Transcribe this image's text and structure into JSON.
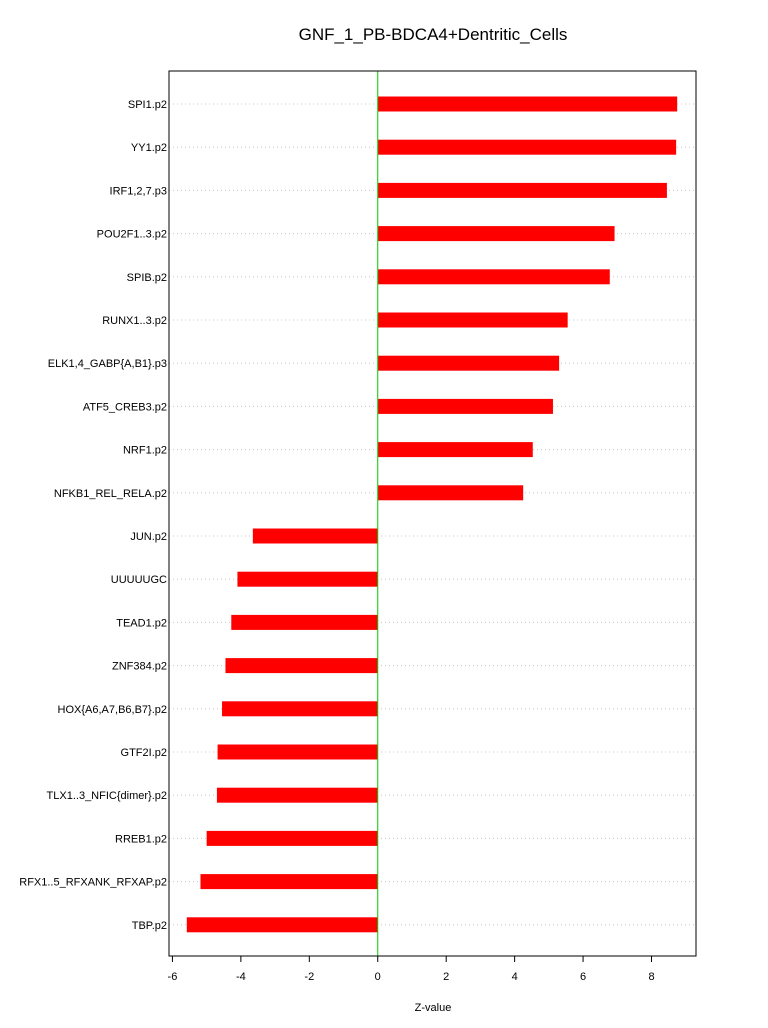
{
  "chart_data": {
    "type": "bar",
    "orientation": "horizontal",
    "title": "GNF_1_PB-BDCA4+Dentritic_Cells",
    "xlabel": "Z-value",
    "ylabel": "",
    "xlim": [
      -6.1,
      9.3
    ],
    "xticks": [
      -6,
      -4,
      -2,
      0,
      2,
      4,
      6,
      8
    ],
    "grid": "horizontal dotted",
    "reference_line": 0,
    "colors": {
      "bar": "#ff0000",
      "zero_line": "#00cc00",
      "grid": "#c8c8c8",
      "axis": "#000000"
    },
    "categories": [
      "SPI1.p2",
      "YY1.p2",
      "IRF1,2,7.p3",
      "POU2F1..3.p2",
      "SPIB.p2",
      "RUNX1..3.p2",
      "ELK1,4_GABP{A,B1}.p3",
      "ATF5_CREB3.p2",
      "NRF1.p2",
      "NFKB1_REL_RELA.p2",
      "JUN.p2",
      "UUUUUGC",
      "TEAD1.p2",
      "ZNF384.p2",
      "HOX{A6,A7,B6,B7}.p2",
      "GTF2I.p2",
      "TLX1..3_NFIC{dimer}.p2",
      "RREB1.p2",
      "RFX1..5_RFXANK_RFXAP.p2",
      "TBP.p2"
    ],
    "values": [
      8.75,
      8.72,
      8.45,
      6.92,
      6.78,
      5.55,
      5.3,
      5.12,
      4.53,
      4.25,
      -3.65,
      -4.1,
      -4.28,
      -4.45,
      -4.55,
      -4.68,
      -4.7,
      -5.0,
      -5.18,
      -5.58
    ]
  }
}
